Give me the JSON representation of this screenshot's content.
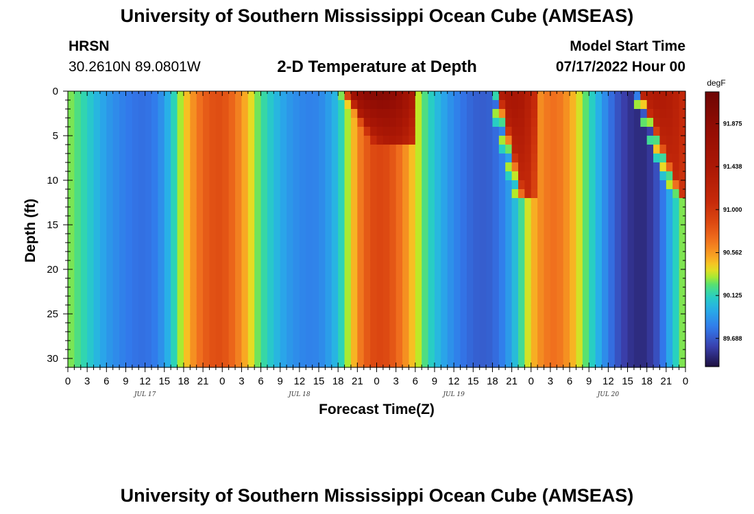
{
  "header": {
    "title": "University of Southern Mississippi Ocean Cube (AMSEAS)",
    "station": "HRSN",
    "location": "30.2610N  89.0801W",
    "subtitle": "2-D Temperature at Depth",
    "model_start_label": "Model Start Time",
    "model_start_value": "07/17/2022 Hour 00"
  },
  "footer": {
    "title": "University of Southern Mississippi Ocean Cube (AMSEAS)"
  },
  "chart_data": {
    "type": "heatmap",
    "title": "2-D Temperature at Depth",
    "xlabel": "Forecast Time(Z)",
    "ylabel": "Depth (ft)",
    "units": "degF",
    "x_hours_range": [
      0,
      96
    ],
    "x_tick_hours": [
      0,
      3,
      6,
      9,
      12,
      15,
      18,
      21,
      24,
      27,
      30,
      33,
      36,
      39,
      42,
      45,
      48,
      51,
      54,
      57,
      60,
      63,
      66,
      69,
      72,
      75,
      78,
      81,
      84,
      87,
      90,
      93,
      96
    ],
    "x_tick_labels": [
      "0",
      "3",
      "6",
      "9",
      "12",
      "15",
      "18",
      "21",
      "0",
      "3",
      "6",
      "9",
      "12",
      "15",
      "18",
      "21",
      "0",
      "3",
      "6",
      "9",
      "12",
      "15",
      "18",
      "21",
      "0",
      "3",
      "6",
      "9",
      "12",
      "15",
      "18",
      "21",
      "0"
    ],
    "day_labels": [
      {
        "hour": 12,
        "label": "JUL 17"
      },
      {
        "hour": 36,
        "label": "JUL 18"
      },
      {
        "hour": 60,
        "label": "JUL 19"
      },
      {
        "hour": 84,
        "label": "JUL 20"
      }
    ],
    "y_range": [
      0,
      31
    ],
    "y_ticks": [
      0,
      5,
      10,
      15,
      20,
      25,
      30
    ],
    "y_tick_labels": [
      "0",
      "5",
      "10",
      "15",
      "20",
      "25",
      "30"
    ],
    "colorbar": {
      "range": [
        89.4,
        92.2
      ],
      "ticks": [
        91.875,
        91.438,
        91.0,
        90.562,
        90.125,
        89.688
      ],
      "tick_labels": [
        "91.875",
        "91.438",
        "91.000",
        "90.562",
        "90.125",
        "89.688"
      ]
    },
    "bottom_profile": {
      "hours": [
        0,
        2,
        4,
        6,
        8,
        10,
        12,
        14,
        16,
        18,
        20,
        22,
        24,
        26,
        28,
        30,
        32,
        34,
        36,
        38,
        40,
        42,
        44,
        46,
        48,
        50,
        52,
        54,
        56,
        58,
        60,
        62,
        64,
        66,
        68,
        70,
        72,
        74,
        76,
        78,
        80,
        82,
        84,
        86,
        88,
        90,
        92,
        94,
        96
      ],
      "temps_degF": [
        90.3,
        90.18,
        90.05,
        89.92,
        89.84,
        89.78,
        89.76,
        89.82,
        90.05,
        90.4,
        90.65,
        90.82,
        90.85,
        90.7,
        90.45,
        90.2,
        90.05,
        89.92,
        89.85,
        89.82,
        89.88,
        90.05,
        90.4,
        90.75,
        90.9,
        90.85,
        90.65,
        90.4,
        90.15,
        89.98,
        89.85,
        89.75,
        89.7,
        89.72,
        89.85,
        90.1,
        90.45,
        90.65,
        90.7,
        90.55,
        90.3,
        90.05,
        89.8,
        89.62,
        89.52,
        89.52,
        89.7,
        90.05,
        90.35
      ]
    },
    "surface_warm_events": [
      {
        "start_hour": 42.5,
        "end_hour": 54.0,
        "peak_degF": 92.0,
        "max_depth_ft": 5.5,
        "front_slope_hours_per_ft": 0.75
      },
      {
        "start_hour": 66.0,
        "end_hour": 72.5,
        "peak_degF": 91.5,
        "max_depth_ft": 11.5,
        "front_slope_hours_per_ft": 0.33
      },
      {
        "start_hour": 88.0,
        "end_hour": 96.0,
        "peak_degF": 91.4,
        "max_depth_ft": 11.5,
        "front_slope_hours_per_ft": 0.55
      }
    ]
  }
}
